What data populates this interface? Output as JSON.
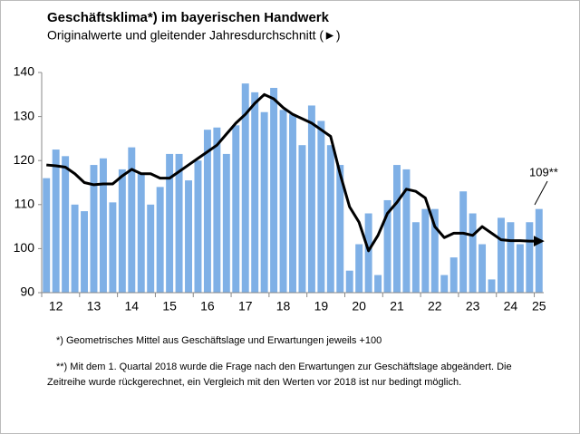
{
  "chart_data": {
    "type": "bar_line",
    "title": "Geschäftsklima*) im bayerischen Handwerk",
    "subtitle": "Originalwerte und gleitender Jahresdurchschnitt (►)",
    "categories": [
      null,
      "12",
      null,
      null,
      null,
      "13",
      null,
      null,
      null,
      "14",
      null,
      null,
      null,
      "15",
      null,
      null,
      null,
      "16",
      null,
      null,
      null,
      "17",
      null,
      null,
      null,
      "18",
      null,
      null,
      null,
      "19",
      null,
      null,
      null,
      "20",
      null,
      null,
      null,
      "21",
      null,
      null,
      null,
      "22",
      null,
      null,
      null,
      "23",
      null,
      null,
      null,
      "24",
      null,
      null,
      "25"
    ],
    "series": [
      {
        "color": "#7fb0e6",
        "values": [
          116,
          122.5,
          121,
          110,
          108.5,
          119,
          120.5,
          110.5,
          118,
          123,
          117,
          110,
          114,
          121.5,
          121.5,
          115.5,
          120,
          127,
          127.5,
          121.5,
          128,
          137.5,
          135.5,
          131,
          136.5,
          131.5,
          130.5,
          123.5,
          132.5,
          129,
          123.5,
          119,
          95,
          101,
          108,
          94,
          111,
          119,
          118,
          106,
          109,
          109,
          94,
          98,
          113,
          108,
          101,
          93,
          107,
          106,
          101,
          106,
          109
        ]
      },
      {
        "color": "#000000",
        "values": [
          119,
          118.8,
          118.5,
          117,
          115,
          114.5,
          114.7,
          114.7,
          116.5,
          118,
          117,
          117,
          116,
          116,
          117.5,
          119,
          120.5,
          122,
          123.5,
          126,
          128.5,
          130.5,
          133,
          135,
          134,
          132,
          130.5,
          129.5,
          128.5,
          127,
          125.5,
          117,
          109.5,
          106,
          99.5,
          103,
          108,
          110.5,
          113.5,
          113,
          111.5,
          105,
          102.5,
          103.5,
          103.5,
          103,
          105,
          103.5,
          102,
          101.8,
          101.8,
          101.7,
          101.7
        ]
      }
    ],
    "ylim": [
      90,
      140
    ],
    "yticks": [
      90,
      100,
      110,
      120,
      130,
      140
    ],
    "annotation": "109**",
    "footnotes": [
      "*)  Geometrisches Mittel aus Geschäftslage und Erwartungen jeweils +100",
      "**) Mit dem 1. Quartal 2018 wurde die Frage nach den Erwartungen zur Geschäftslage abgeändert.  Die",
      "Zeitreihe wurde rückgerechnet, ein Vergleich mit den Werten vor 2018 ist nur bedingt möglich."
    ]
  }
}
